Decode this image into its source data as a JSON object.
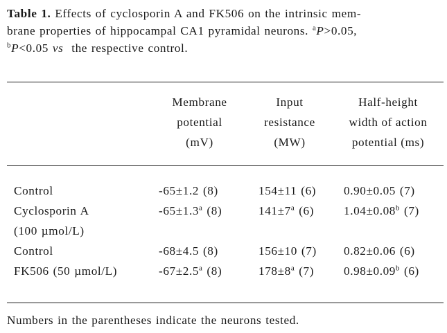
{
  "caption": {
    "label": "Table 1.",
    "line1_text": "Effects of cyclosporin A and FK506 on the intrinsic mem-",
    "line2_text": "brane properties of hippocampal CA1 pyramidal neurons.",
    "line2_sup_a": "a",
    "line2_p1": "P",
    "line2_cmp1": ">0.05,",
    "line3_sup_b": "b",
    "line3_p2": "P",
    "line3_cmp2": "<0.05",
    "line3_vs": "vs",
    "line3_tail": "the respective control."
  },
  "table": {
    "headers": [
      {
        "lines": [
          "Membrane",
          "potential",
          "(mV)"
        ]
      },
      {
        "lines": [
          "Input",
          "resistance",
          "(MW)"
        ]
      },
      {
        "lines": [
          "Half-height",
          "width of action",
          "potential (ms)"
        ]
      }
    ],
    "rows": [
      {
        "name": "Control",
        "membrane_potential": {
          "value": "-65±1.2",
          "sup": "",
          "n": "(8)"
        },
        "input_resistance": {
          "value": "154±11",
          "sup": "",
          "n": "(6)"
        },
        "half_width": {
          "value": "0.90±0.05",
          "sup": "",
          "n": "(7)"
        }
      },
      {
        "name": "Cyclosporin A",
        "name_line2": "(100 µmol/L)",
        "membrane_potential": {
          "value": "-65±1.3",
          "sup": "a",
          "n": "(8)"
        },
        "input_resistance": {
          "value": "141±7",
          "sup": "a",
          "n": "(6)"
        },
        "half_width": {
          "value": "1.04±0.08",
          "sup": "b",
          "n": "(7)"
        }
      },
      {
        "name": "Control",
        "membrane_potential": {
          "value": "-68±4.5",
          "sup": "",
          "n": "(8)"
        },
        "input_resistance": {
          "value": "156±10",
          "sup": "",
          "n": "(7)"
        },
        "half_width": {
          "value": "0.82±0.06",
          "sup": "",
          "n": "(6)"
        }
      },
      {
        "name": "FK506 (50 µmol/L)",
        "membrane_potential": {
          "value": "-67±2.5",
          "sup": "a",
          "n": "(8)"
        },
        "input_resistance": {
          "value": "178±8",
          "sup": "a",
          "n": "(7)"
        },
        "half_width": {
          "value": "0.98±0.09",
          "sup": "b",
          "n": "(6)"
        }
      }
    ]
  },
  "footnote": "Numbers in the parentheses indicate the neurons tested."
}
